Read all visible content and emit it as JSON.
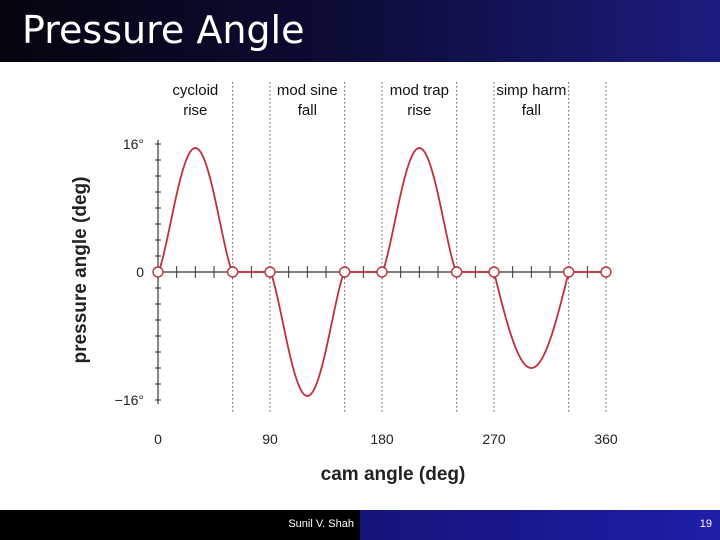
{
  "slide": {
    "title": "Pressure Angle",
    "author": "Sunil V. Shah",
    "page_number": "19"
  },
  "colors": {
    "title_bar": "#0b0b33",
    "curve": "#c0303a",
    "footer_right": "#1e1ea8"
  },
  "chart_data": {
    "type": "line",
    "title": "",
    "xlabel": "cam angle (deg)",
    "ylabel": "pressure angle (deg)",
    "xlim": [
      0,
      360
    ],
    "ylim": [
      -16,
      16
    ],
    "x_ticks": [
      {
        "value": 0,
        "label": "0"
      },
      {
        "value": 90,
        "label": "90"
      },
      {
        "value": 180,
        "label": "180"
      },
      {
        "value": 270,
        "label": "270"
      },
      {
        "value": 360,
        "label": "360"
      }
    ],
    "y_ticks": [
      {
        "value": 16,
        "label": "16°"
      },
      {
        "value": 0,
        "label": "0"
      },
      {
        "value": -16,
        "label": "−16°"
      }
    ],
    "segment_boundaries": [
      0,
      60,
      90,
      150,
      180,
      240,
      270,
      330,
      360
    ],
    "segments": [
      {
        "label_line1": "cycloid",
        "label_line2": "rise",
        "x_start": 0,
        "x_end": 60,
        "profile": "cycloid",
        "peak": 15.5
      },
      {
        "label_line1": "mod sine",
        "label_line2": "fall",
        "x_start": 90,
        "x_end": 150,
        "profile": "modsine",
        "peak": -15.5
      },
      {
        "label_line1": "mod trap",
        "label_line2": "rise",
        "x_start": 180,
        "x_end": 240,
        "profile": "modtrap",
        "peak": 15.5
      },
      {
        "label_line1": "simp harm",
        "label_line2": "fall",
        "x_start": 270,
        "x_end": 330,
        "profile": "harmonic",
        "peak": -12
      }
    ],
    "zero_points": [
      0,
      60,
      90,
      150,
      180,
      240,
      270,
      330,
      360
    ]
  }
}
